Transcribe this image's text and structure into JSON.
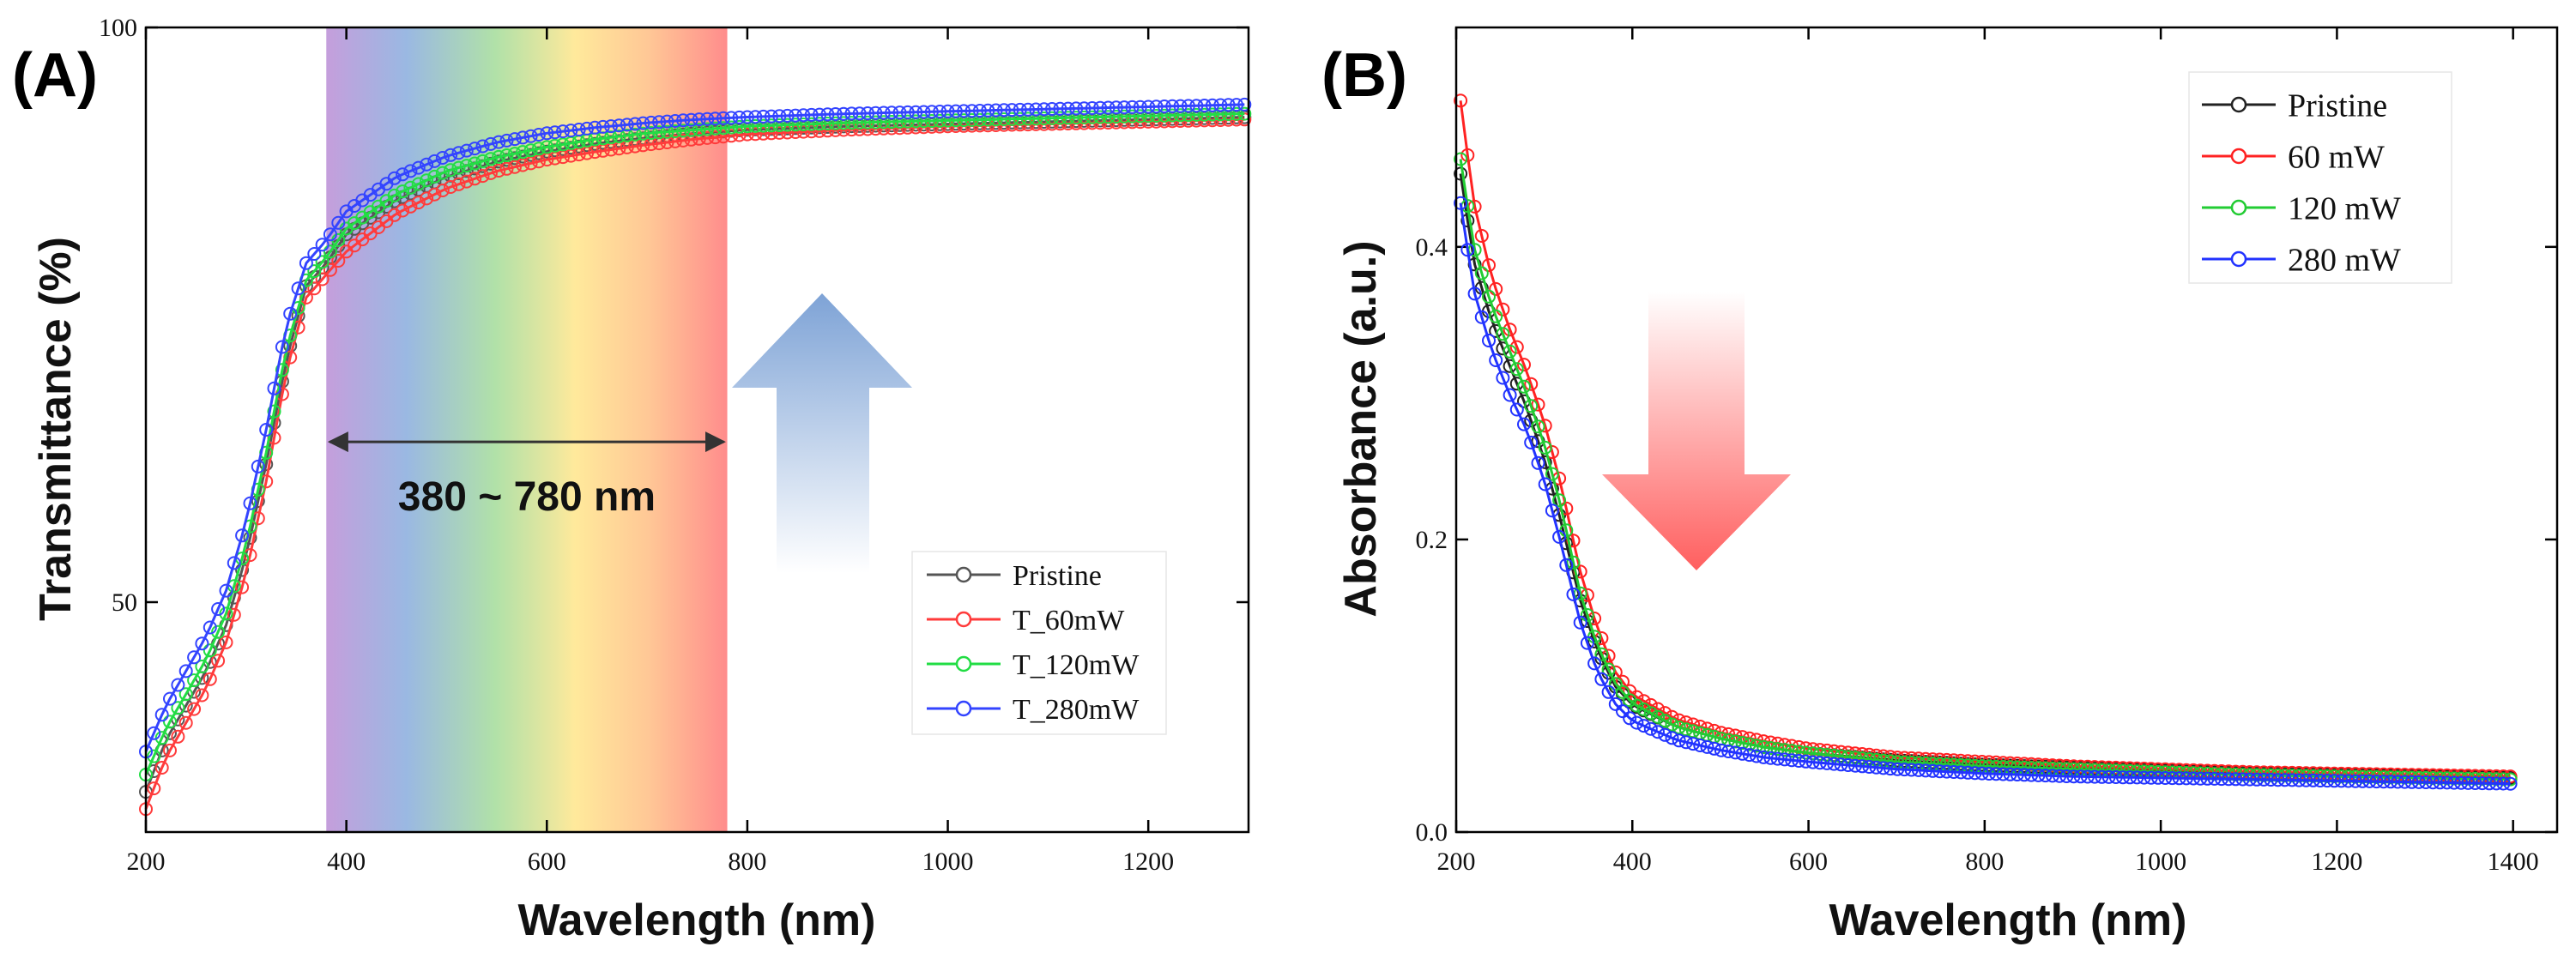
{
  "figure": {
    "panels": [
      {
        "label": "(A)"
      },
      {
        "label": "(B)"
      }
    ]
  },
  "chart_data": [
    {
      "type": "scatter",
      "panel_label": "(A)",
      "title": "",
      "xlabel": "Wavelength (nm)",
      "ylabel": "Transmittance (%)",
      "xlim": [
        200,
        1300
      ],
      "ylim": [
        30,
        100
      ],
      "xticks": [
        200,
        400,
        600,
        800,
        1000,
        1200
      ],
      "yticks": [
        50,
        100
      ],
      "legend_position": "bottom-right",
      "highlight": {
        "from": 380,
        "to": 780,
        "label": "380 ~ 780 nm"
      },
      "arrow": {
        "direction": "up",
        "color": "#7ea3d6"
      },
      "x": [
        200,
        220,
        240,
        260,
        280,
        300,
        320,
        340,
        360,
        380,
        400,
        450,
        500,
        550,
        600,
        650,
        700,
        750,
        800,
        900,
        1000,
        1100,
        1200,
        1300
      ],
      "series": [
        {
          "name": "Pristine",
          "color": "#555555",
          "values": [
            33.5,
            38,
            41,
            44,
            48,
            54,
            62,
            71,
            77.5,
            79.5,
            82,
            85,
            87,
            88.3,
            89.2,
            89.9,
            90.4,
            90.8,
            91.1,
            91.4,
            91.6,
            91.8,
            92.0,
            92.2
          ]
        },
        {
          "name": "T_60mW",
          "color": "#ff3b3b",
          "values": [
            32,
            36.5,
            39.5,
            42.5,
            46.5,
            52.5,
            60.5,
            70,
            76.5,
            78.5,
            80.5,
            83.8,
            86,
            87.5,
            88.5,
            89.2,
            89.8,
            90.3,
            90.7,
            91.1,
            91.4,
            91.6,
            91.8,
            92.0
          ]
        },
        {
          "name": "T_120mW",
          "color": "#22dd44",
          "values": [
            35,
            39,
            42,
            45,
            49,
            55,
            63,
            72,
            78,
            80,
            82.5,
            85.5,
            87.5,
            88.7,
            89.6,
            90.3,
            90.8,
            91.1,
            91.4,
            91.7,
            91.9,
            92.1,
            92.3,
            92.5
          ]
        },
        {
          "name": "T_280mW",
          "color": "#3344ff",
          "values": [
            37,
            41,
            44,
            47,
            51,
            57,
            65,
            74,
            79.5,
            81.5,
            84,
            87,
            88.8,
            90,
            90.8,
            91.3,
            91.7,
            92.0,
            92.2,
            92.5,
            92.7,
            92.9,
            93.1,
            93.3
          ]
        }
      ]
    },
    {
      "type": "scatter",
      "panel_label": "(B)",
      "title": "",
      "xlabel": "Wavelength (nm)",
      "ylabel": "Absorbance (a.u.)",
      "xlim": [
        200,
        1450
      ],
      "ylim": [
        0.0,
        0.55
      ],
      "xticks": [
        200,
        400,
        600,
        800,
        1000,
        1200,
        1400
      ],
      "yticks": [
        0.0,
        0.2,
        0.4
      ],
      "legend_position": "top-right",
      "arrow": {
        "direction": "down",
        "color": "#ff6666"
      },
      "x": [
        205,
        220,
        240,
        260,
        280,
        300,
        320,
        340,
        360,
        380,
        400,
        450,
        500,
        550,
        600,
        700,
        800,
        900,
        1000,
        1100,
        1200,
        1300,
        1400
      ],
      "series": [
        {
          "name": "Pristine",
          "color": "#222222",
          "values": [
            0.45,
            0.39,
            0.35,
            0.32,
            0.29,
            0.255,
            0.21,
            0.16,
            0.125,
            0.1,
            0.087,
            0.072,
            0.064,
            0.058,
            0.054,
            0.049,
            0.046,
            0.044,
            0.042,
            0.04,
            0.039,
            0.038,
            0.037
          ]
        },
        {
          "name": "60 mW",
          "color": "#ff2222",
          "values": [
            0.5,
            0.43,
            0.38,
            0.345,
            0.315,
            0.28,
            0.235,
            0.18,
            0.14,
            0.11,
            0.094,
            0.077,
            0.068,
            0.062,
            0.057,
            0.051,
            0.048,
            0.045,
            0.043,
            0.041,
            0.04,
            0.039,
            0.038
          ]
        },
        {
          "name": "120 mW",
          "color": "#22cc33",
          "values": [
            0.46,
            0.4,
            0.36,
            0.33,
            0.3,
            0.265,
            0.22,
            0.165,
            0.128,
            0.102,
            0.088,
            0.072,
            0.064,
            0.058,
            0.054,
            0.048,
            0.045,
            0.043,
            0.041,
            0.039,
            0.038,
            0.037,
            0.036
          ]
        },
        {
          "name": "280 mW",
          "color": "#2233ff",
          "values": [
            0.43,
            0.37,
            0.33,
            0.3,
            0.275,
            0.24,
            0.195,
            0.145,
            0.11,
            0.088,
            0.076,
            0.063,
            0.056,
            0.051,
            0.048,
            0.043,
            0.04,
            0.038,
            0.037,
            0.036,
            0.035,
            0.034,
            0.033
          ]
        }
      ]
    }
  ]
}
